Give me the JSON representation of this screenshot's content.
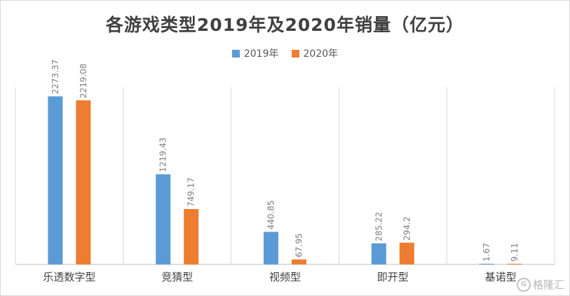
{
  "chart_data": {
    "type": "bar",
    "title": "各游戏类型2019年及2020年销量（亿元）",
    "categories": [
      "乐透数字型",
      "竞猜型",
      "视频型",
      "即开型",
      "基诺型"
    ],
    "series": [
      {
        "name": "2019年",
        "color": "#5b9bd5",
        "values": [
          2273.37,
          1219.43,
          440.85,
          285.22,
          1.67
        ],
        "labels": [
          "2273.37",
          "1219.43",
          "440.85",
          "285.22",
          "1.67"
        ]
      },
      {
        "name": "2020年",
        "color": "#ed7d31",
        "values": [
          2219.08,
          749.17,
          67.95,
          294.2,
          9.11
        ],
        "labels": [
          "2219.08",
          "749.17",
          "67.95",
          "294.2",
          "9.11"
        ]
      }
    ],
    "ylim": [
      0,
      2400
    ],
    "grid": true,
    "legend_position": "top-center"
  },
  "watermark": {
    "text": "格隆汇",
    "icon": "glh-logo-icon"
  }
}
